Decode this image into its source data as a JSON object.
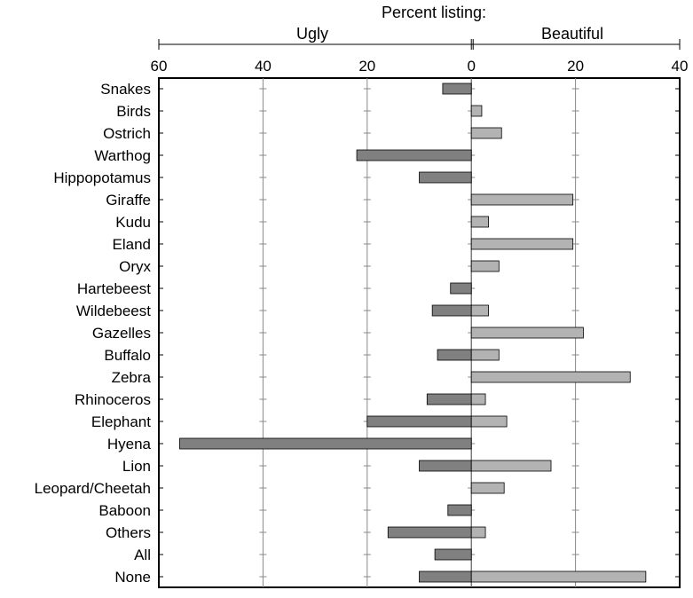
{
  "chart_data": {
    "type": "bar",
    "orientation": "horizontal-diverging",
    "title": "Percent listing:",
    "left_label": "Ugly",
    "right_label": "Beautiful",
    "ticks_left": [
      "60",
      "40",
      "20",
      "0"
    ],
    "ticks_right": [
      "20",
      "40"
    ],
    "xlim": [
      -60,
      40
    ],
    "grid": true,
    "categories": [
      "Snakes",
      "Birds",
      "Ostrich",
      "Warthog",
      "Hippopotamus",
      "Giraffe",
      "Kudu",
      "Eland",
      "Oryx",
      "Hartebeest",
      "Wildebeest",
      "Gazelles",
      "Buffalo",
      "Zebra",
      "Rhinoceros",
      "Elephant",
      "Hyena",
      "Lion",
      "Leopard/Cheetah",
      "Baboon",
      "Others",
      "All",
      "None"
    ],
    "series": [
      {
        "name": "Ugly",
        "color": "#808080",
        "values": [
          5.5,
          0,
          0,
          22,
          10,
          0,
          0,
          0,
          0,
          4,
          7.5,
          0,
          6.5,
          0,
          8.5,
          20,
          56,
          10,
          0,
          4.5,
          16,
          7,
          10
        ]
      },
      {
        "name": "Beautiful",
        "color": "#b3b3b3",
        "values": [
          0,
          2,
          5.8,
          0,
          0,
          19.5,
          3.3,
          19.5,
          5.3,
          0,
          3.3,
          21.5,
          5.3,
          30.5,
          2.7,
          6.8,
          0,
          15.3,
          6.3,
          0,
          2.7,
          0,
          33.5
        ]
      }
    ]
  }
}
